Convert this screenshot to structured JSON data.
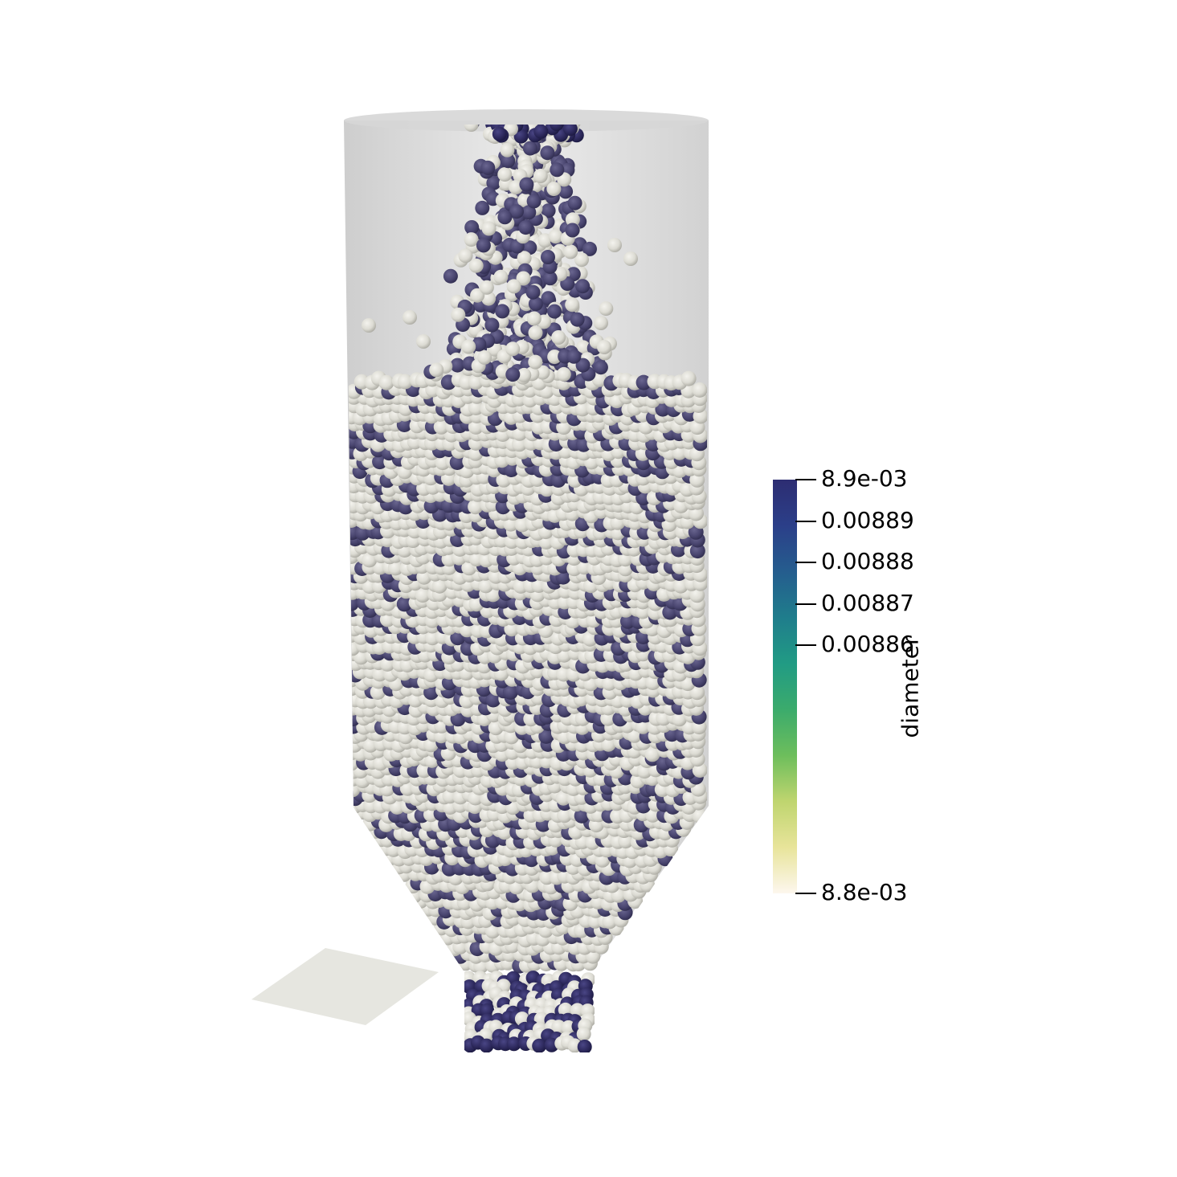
{
  "colorbar": {
    "title": "diameter",
    "colormap": [
      "#fdf7ee",
      "#e8e49a",
      "#bfd56f",
      "#6dbe5c",
      "#3bab6c",
      "#219b84",
      "#1f7d8c",
      "#255d8e",
      "#2b3f89",
      "#2d2d72"
    ],
    "ticks": [
      {
        "label": "8.9e-03",
        "value": 0.0089
      },
      {
        "label": "0.00889",
        "value": 0.00889
      },
      {
        "label": "0.00888",
        "value": 0.00888
      },
      {
        "label": "0.00887",
        "value": 0.00887
      },
      {
        "label": "0.00886",
        "value": 0.00886
      },
      {
        "label": "8.8e-03",
        "value": 0.0088
      }
    ]
  },
  "particles": {
    "light_color": "#dcdbd3",
    "dark_color": "#4a4670",
    "outlet_dark_color": "#2e2a5e"
  },
  "silo": {
    "wall_color": "#c9c9c9"
  },
  "ground_plane": {
    "color": "#e6e6e0"
  }
}
